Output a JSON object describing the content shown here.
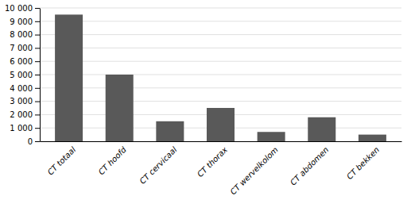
{
  "chart_data": {
    "type": "bar",
    "categories": [
      "CT totaal",
      "CT hoofd",
      "CT cervicaal",
      "CT thorax",
      "CT wervelkolom",
      "CT abdomen",
      "CT bekken"
    ],
    "values": [
      9500,
      5000,
      1500,
      2500,
      700,
      1800,
      500
    ],
    "color": "#595959",
    "ylim": [
      0,
      10000
    ],
    "yticks": [
      0,
      {
        "value": 1000,
        "label": "1 000"
      },
      {
        "value": 2000,
        "label": "2 000"
      },
      {
        "value": 3000,
        "label": "3 000"
      },
      {
        "value": 4000,
        "label": "4 000"
      },
      {
        "value": 5000,
        "label": "5 000"
      },
      {
        "value": 6000,
        "label": "6 000"
      },
      {
        "value": 7000,
        "label": "7 000"
      },
      {
        "value": 8000,
        "label": "8 000"
      },
      {
        "value": 9000,
        "label": "9 000"
      },
      {
        "value": 10000,
        "label": "10 000"
      }
    ],
    "grid": true
  }
}
